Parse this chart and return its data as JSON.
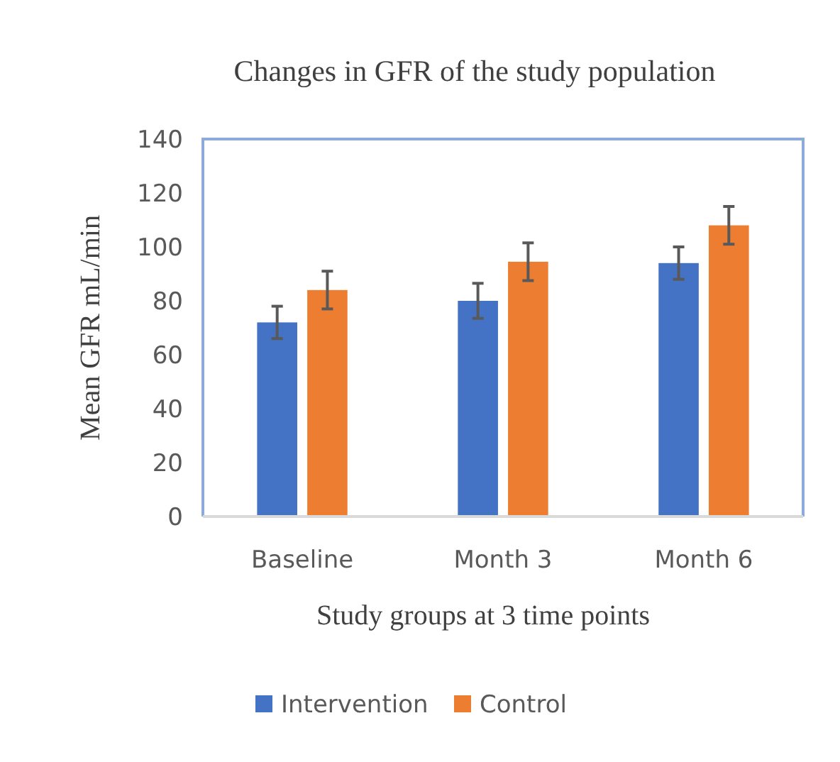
{
  "chart_data": {
    "type": "bar",
    "title": "Changes in GFR of the study population",
    "xlabel": "Study groups at 3 time points",
    "ylabel": "Mean GFR mL/min",
    "categories": [
      "Baseline",
      "Month 3",
      "Month 6"
    ],
    "series": [
      {
        "name": "Intervention",
        "color": "#4472c4",
        "values": [
          72,
          80,
          94
        ],
        "errors": [
          6,
          6.5,
          6
        ]
      },
      {
        "name": "Control",
        "color": "#ed7d31",
        "values": [
          84,
          94.5,
          108
        ],
        "errors": [
          7,
          7,
          7
        ]
      }
    ],
    "ylim": [
      0,
      140
    ],
    "yticks": [
      0,
      20,
      40,
      60,
      80,
      100,
      120,
      140
    ],
    "grid": false,
    "legend": "bottom"
  }
}
